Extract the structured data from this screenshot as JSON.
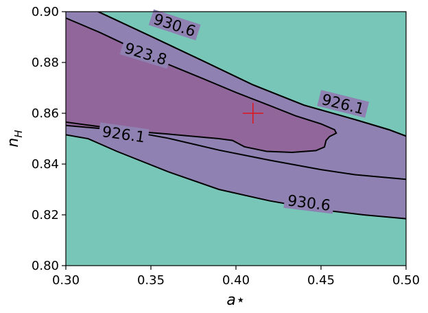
{
  "chart_data": {
    "type": "contour",
    "title": "",
    "xlabel": "a⋆",
    "ylabel": "n_H",
    "xlim": [
      0.3,
      0.5
    ],
    "ylim": [
      0.8,
      0.9
    ],
    "xticks": [
      "0.30",
      "0.35",
      "0.40",
      "0.45",
      "0.50"
    ],
    "yticks": [
      "0.80",
      "0.82",
      "0.84",
      "0.86",
      "0.88",
      "0.90"
    ],
    "grid": false,
    "legend": "none",
    "colors": {
      "outer": "#77c6b7",
      "middle": "#8f82b3",
      "inner": "#91679b",
      "lines": "#000000",
      "marker": "#e0141c"
    },
    "marker": {
      "shape": "plus",
      "x": 0.41,
      "y": 0.86
    },
    "levels": [
      {
        "level": "923.8",
        "curves": [
          [
            [
              0.3,
              0.8975
            ],
            [
              0.32,
              0.8918
            ],
            [
              0.34,
              0.8855
            ],
            [
              0.36,
              0.8793
            ],
            [
              0.38,
              0.8738
            ],
            [
              0.4,
              0.8682
            ],
            [
              0.42,
              0.863
            ],
            [
              0.435,
              0.859
            ],
            [
              0.45,
              0.8558
            ],
            [
              0.458,
              0.8535
            ],
            [
              0.459,
              0.8522
            ],
            [
              0.455,
              0.8508
            ],
            [
              0.453,
              0.8493
            ],
            [
              0.452,
              0.8467
            ],
            [
              0.447,
              0.8453
            ],
            [
              0.433,
              0.8446
            ],
            [
              0.418,
              0.845
            ],
            [
              0.405,
              0.8468
            ],
            [
              0.398,
              0.8493
            ],
            [
              0.39,
              0.85
            ],
            [
              0.36,
              0.8518
            ],
            [
              0.33,
              0.8534
            ],
            [
              0.3,
              0.8552
            ]
          ]
        ],
        "labels": [
          {
            "text": "923.8",
            "x": 0.347,
            "y": 0.8835,
            "angle": 17
          }
        ]
      },
      {
        "level": "926.1",
        "curves": [
          [
            [
              0.319,
              0.9
            ],
            [
              0.35,
              0.8903
            ],
            [
              0.38,
              0.8808
            ],
            [
              0.41,
              0.8712
            ],
            [
              0.44,
              0.8632
            ],
            [
              0.47,
              0.8575
            ],
            [
              0.49,
              0.8535
            ],
            [
              0.5,
              0.851
            ]
          ],
          [
            [
              0.3,
              0.8565
            ],
            [
              0.33,
              0.8538
            ],
            [
              0.36,
              0.8502
            ],
            [
              0.39,
              0.8455
            ],
            [
              0.42,
              0.8415
            ],
            [
              0.45,
              0.8378
            ],
            [
              0.47,
              0.8358
            ],
            [
              0.5,
              0.834
            ]
          ]
        ],
        "labels": [
          {
            "text": "926.1",
            "x": 0.463,
            "y": 0.8637,
            "angle": 14
          },
          {
            "text": "926.1",
            "x": 0.334,
            "y": 0.8518,
            "angle": 8
          }
        ]
      },
      {
        "level": "930.6",
        "curves": [
          [
            [
              0.319,
              0.9
            ],
            [
              0.35,
              0.8903
            ],
            [
              0.38,
              0.8808
            ],
            [
              0.41,
              0.8712
            ],
            [
              0.44,
              0.8632
            ],
            [
              0.47,
              0.8575
            ],
            [
              0.49,
              0.8535
            ],
            [
              0.5,
              0.851
            ]
          ],
          [
            [
              0.3,
              0.8515
            ],
            [
              0.313,
              0.85
            ],
            [
              0.33,
              0.845
            ],
            [
              0.36,
              0.837
            ],
            [
              0.39,
              0.83
            ],
            [
              0.42,
              0.8255
            ],
            [
              0.45,
              0.822
            ],
            [
              0.475,
              0.82
            ],
            [
              0.5,
              0.8185
            ]
          ]
        ],
        "labels": [
          {
            "text": "930.6",
            "x": 0.364,
            "y": 0.8948,
            "angle": 18
          },
          {
            "text": "930.6",
            "x": 0.443,
            "y": 0.8248,
            "angle": 7
          }
        ]
      }
    ]
  }
}
